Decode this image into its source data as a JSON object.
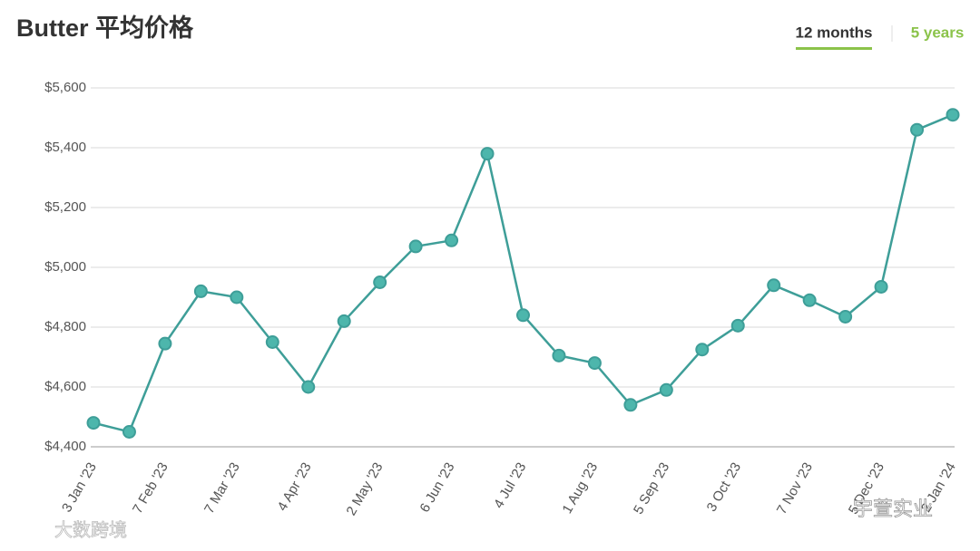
{
  "chart_data": {
    "type": "line",
    "title": "Butter 平均价格",
    "tabs": [
      "12 months",
      "5 years"
    ],
    "watermarks": [
      "大数跨境",
      "宇萱实业"
    ],
    "categories": [
      "3 Jan '23",
      null,
      "7 Feb '23",
      null,
      "7 Mar '23",
      null,
      "4 Apr '23",
      null,
      "2 May '23",
      null,
      "6 Jun '23",
      null,
      "4 Jul '23",
      null,
      "1 Aug '23",
      null,
      "5 Sep '23",
      null,
      "3 Oct '23",
      null,
      "7 Nov '23",
      null,
      "5 Dec '23",
      null,
      "2 Jan '24"
    ],
    "series": [
      {
        "color": "#3e9e98",
        "values": [
          4480,
          4450,
          4745,
          4920,
          4900,
          4750,
          4600,
          4820,
          4950,
          5070,
          5090,
          5380,
          4840,
          4705,
          4680,
          4540,
          4590,
          4725,
          4805,
          4940,
          4890,
          4835,
          4935,
          5460,
          5510
        ]
      }
    ],
    "ylim": [
      4400,
      5600
    ],
    "yticks": [
      {
        "value": 4400,
        "label": "$4,400"
      },
      {
        "value": 4600,
        "label": "$4,600"
      },
      {
        "value": 4800,
        "label": "$4,800"
      },
      {
        "value": 5000,
        "label": "$5,000"
      },
      {
        "value": 5200,
        "label": "$5,200"
      },
      {
        "value": 5400,
        "label": "$5,400"
      },
      {
        "value": 5600,
        "label": "$5,600"
      }
    ],
    "grid": true
  }
}
